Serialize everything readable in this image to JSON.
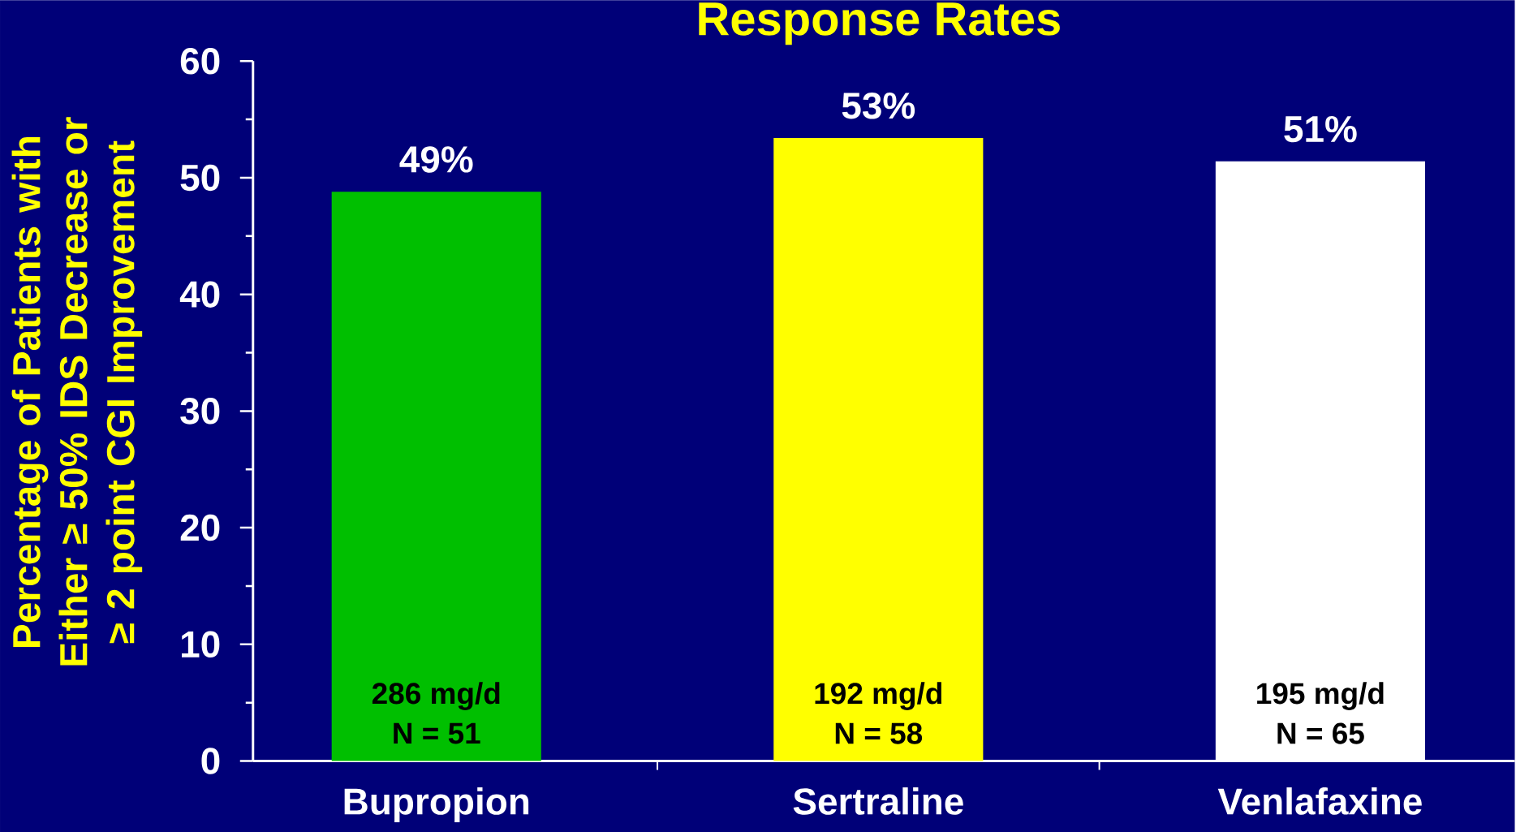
{
  "chart_data": {
    "type": "bar",
    "title": "Response Rates",
    "ylabel": "Percentage of Patients with Either ≥ 50% IDS Decrease or ≥ 2 point CGI Improvement",
    "categories": [
      "Bupropion",
      "Sertraline",
      "Venlafaxine"
    ],
    "values": [
      48.8,
      53.4,
      51.4
    ],
    "colors": [
      "#00bf00",
      "#ffff00",
      "#ffffff"
    ],
    "value_labels": [
      "49%",
      "53%",
      "51%"
    ],
    "annotations": [
      "286 mg/d",
      "N = 51",
      "192 mg/d",
      "N = 58",
      "195 mg/d",
      "N = 65"
    ],
    "ylim": [
      0,
      60
    ],
    "yticks": [
      0,
      10,
      20,
      30,
      40,
      50,
      60
    ]
  }
}
